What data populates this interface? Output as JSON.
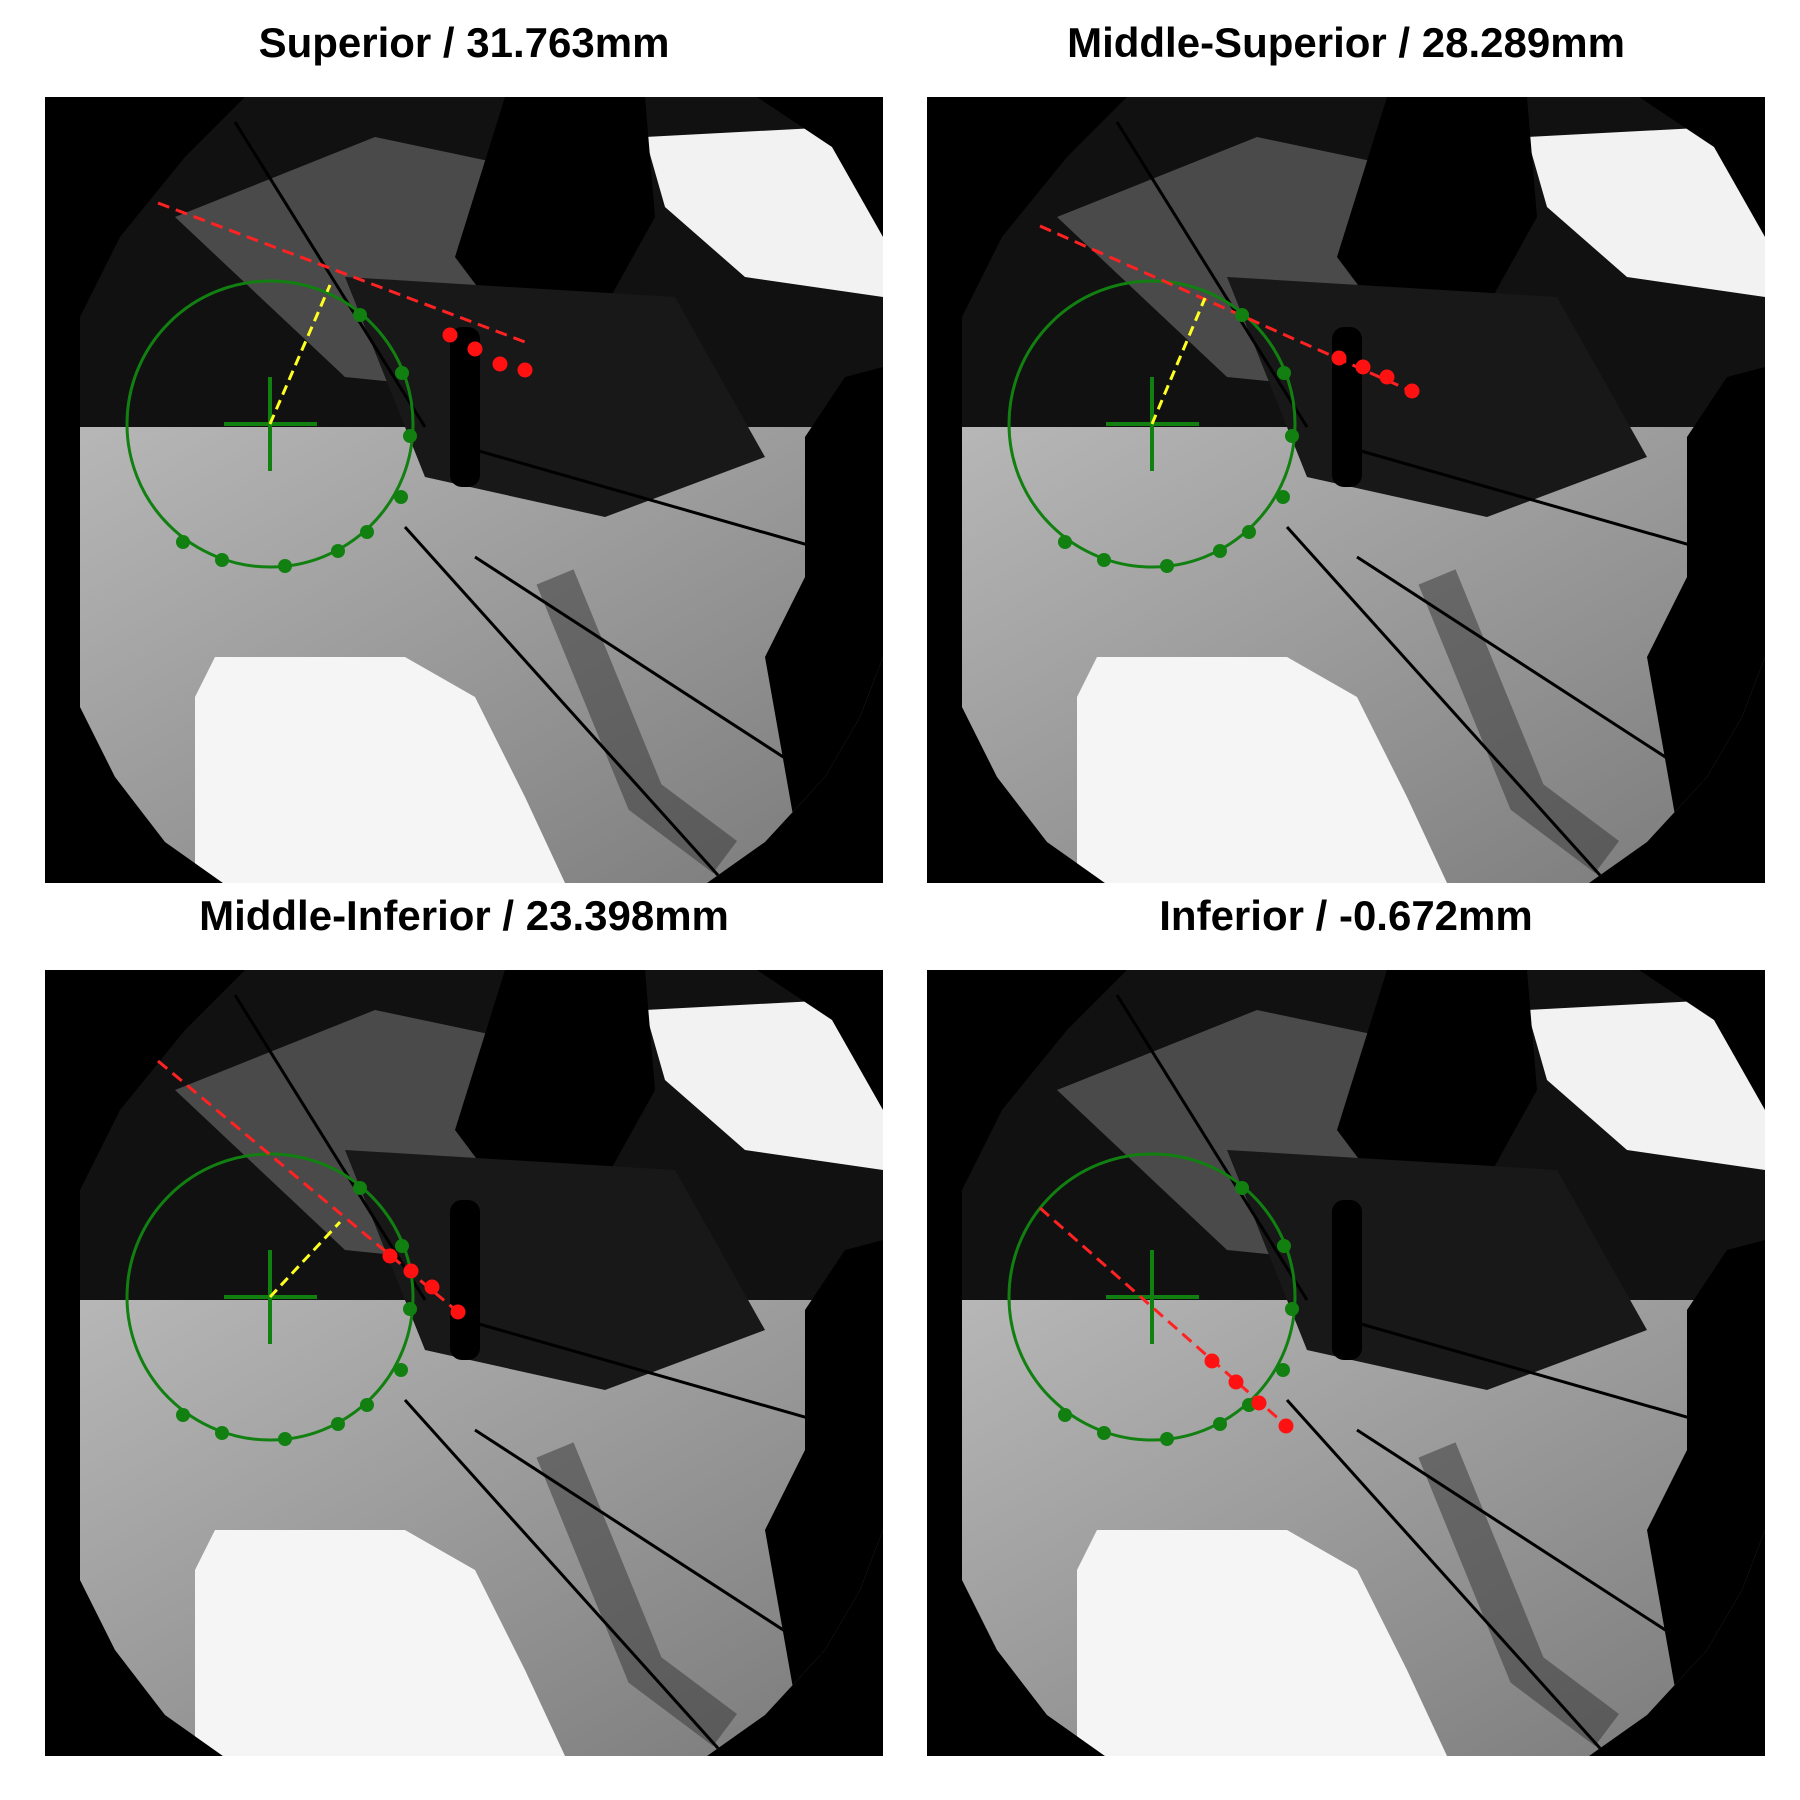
{
  "panels": [
    {
      "title": "Superior / 31.763mm",
      "variant": "superior"
    },
    {
      "title": "Middle-Superior / 28.289mm",
      "variant": "middle-superior"
    },
    {
      "title": "Middle-Inferior / 23.398mm",
      "variant": "middle-inferior"
    },
    {
      "title": "Inferior / -0.672mm",
      "variant": "inferior"
    }
  ],
  "colors": {
    "circle": "#118011",
    "crosshair": "#118011",
    "green_points": "#118011",
    "red_line": "#ff2222",
    "red_points": "#ff1111",
    "yellow_line": "#ffff22",
    "background": "#000000"
  }
}
